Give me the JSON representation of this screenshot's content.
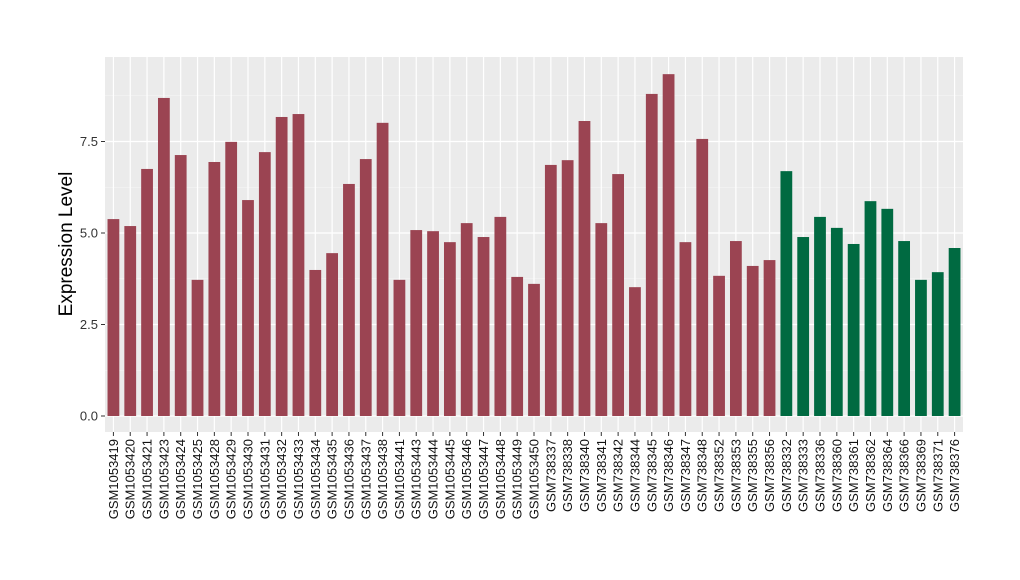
{
  "chart_data": {
    "type": "bar",
    "title": "",
    "xlabel": "",
    "ylabel": "Expression Level",
    "ylim": [
      -0.45,
      9.8
    ],
    "yticks": [
      0.0,
      2.5,
      5.0,
      7.5
    ],
    "ytick_labels": [
      "0.0",
      "2.5",
      "5.0",
      "7.5"
    ],
    "grid": true,
    "legend": "none",
    "colors": {
      "group1": "#9b4452",
      "group2": "#006a41",
      "panel": "#ebebeb",
      "grid": "#ffffff"
    },
    "categories": [
      "GSM1053419",
      "GSM1053420",
      "GSM1053421",
      "GSM1053423",
      "GSM1053424",
      "GSM1053425",
      "GSM1053428",
      "GSM1053429",
      "GSM1053430",
      "GSM1053431",
      "GSM1053432",
      "GSM1053433",
      "GSM1053434",
      "GSM1053435",
      "GSM1053436",
      "GSM1053437",
      "GSM1053438",
      "GSM1053441",
      "GSM1053443",
      "GSM1053444",
      "GSM1053445",
      "GSM1053446",
      "GSM1053447",
      "GSM1053448",
      "GSM1053449",
      "GSM1053450",
      "GSM738337",
      "GSM738338",
      "GSM738340",
      "GSM738341",
      "GSM738342",
      "GSM738344",
      "GSM738345",
      "GSM738346",
      "GSM738347",
      "GSM738348",
      "GSM738352",
      "GSM738353",
      "GSM738355",
      "GSM738356",
      "GSM738332",
      "GSM738333",
      "GSM738336",
      "GSM738360",
      "GSM738361",
      "GSM738362",
      "GSM738364",
      "GSM738366",
      "GSM738369",
      "GSM738371",
      "GSM738376"
    ],
    "values": [
      5.38,
      5.19,
      6.75,
      8.69,
      7.13,
      3.72,
      6.94,
      7.49,
      5.9,
      7.21,
      8.17,
      8.25,
      3.99,
      4.45,
      6.34,
      7.02,
      8.01,
      3.72,
      5.08,
      5.05,
      4.75,
      5.27,
      4.89,
      5.44,
      3.8,
      3.61,
      6.86,
      6.99,
      8.06,
      5.27,
      6.61,
      3.52,
      8.8,
      9.34,
      4.75,
      7.57,
      3.83,
      4.78,
      4.1,
      4.26,
      6.69,
      4.89,
      5.44,
      5.14,
      4.7,
      5.87,
      5.66,
      4.78,
      3.72,
      3.93,
      4.59
    ],
    "groups": [
      1,
      1,
      1,
      1,
      1,
      1,
      1,
      1,
      1,
      1,
      1,
      1,
      1,
      1,
      1,
      1,
      1,
      1,
      1,
      1,
      1,
      1,
      1,
      1,
      1,
      1,
      1,
      1,
      1,
      1,
      1,
      1,
      1,
      1,
      1,
      1,
      1,
      1,
      1,
      1,
      2,
      2,
      2,
      2,
      2,
      2,
      2,
      2,
      2,
      2,
      2
    ]
  }
}
